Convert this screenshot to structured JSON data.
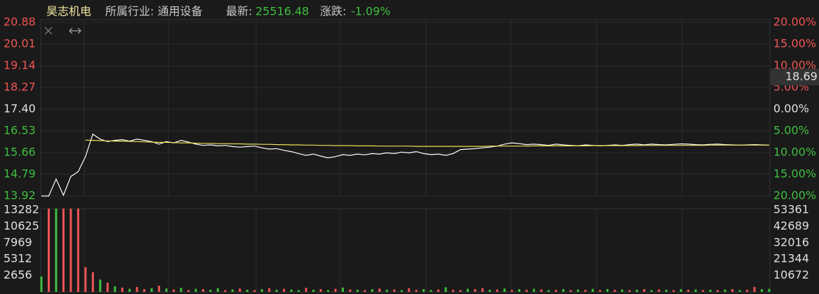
{
  "chart_data": {
    "type": "line",
    "title": "昊志机电",
    "subtitle": "所属行业: 通用设备",
    "latest": {
      "label": "最新:",
      "value": 25516.48
    },
    "change": {
      "label": "涨跌:",
      "value": -1.09,
      "value_label": "-1.09%"
    },
    "cursor_value": 18.69,
    "ylim": [
      13.92,
      20.88
    ],
    "yticks": [
      20.88,
      20.01,
      19.14,
      18.27,
      {
        "value": 17.4,
        "label": "17.40"
      },
      16.53,
      15.66,
      14.79,
      13.92
    ],
    "y2lim": [
      -20,
      20
    ],
    "y2ticks": [
      {
        "value": 20,
        "label": "20.00%"
      },
      {
        "value": 15,
        "label": "15.00%"
      },
      {
        "value": 10,
        "label": "10.00%"
      },
      {
        "value": 5,
        "label": "5.00%"
      },
      {
        "value": 0,
        "label": "0.00%"
      },
      {
        "value": -5,
        "label": "5.00%"
      },
      {
        "value": -10,
        "label": "10.00%"
      },
      {
        "value": -15,
        "label": "15.00%"
      },
      {
        "value": -20,
        "label": "20.00%"
      }
    ],
    "grid": true,
    "series": [
      {
        "color": "#ffffff",
        "values": [
          13.92,
          13.92,
          14.6,
          13.95,
          14.7,
          14.9,
          15.5,
          16.4,
          16.2,
          16.1,
          16.15,
          16.18,
          16.12,
          16.2,
          16.15,
          16.1,
          16.0,
          16.1,
          16.05,
          16.15,
          16.08,
          16.0,
          15.95,
          15.97,
          15.93,
          15.95,
          15.9,
          15.88,
          15.9,
          15.92,
          15.85,
          15.8,
          15.82,
          15.75,
          15.7,
          15.62,
          15.55,
          15.6,
          15.52,
          15.45,
          15.5,
          15.58,
          15.55,
          15.6,
          15.57,
          15.62,
          15.6,
          15.65,
          15.62,
          15.68,
          15.65,
          15.7,
          15.62,
          15.58,
          15.6,
          15.55,
          15.62,
          15.78,
          15.8,
          15.82,
          15.85,
          15.88,
          15.92,
          16.0,
          16.05,
          16.02,
          15.98,
          16.0,
          15.98,
          15.95,
          16.0,
          15.97,
          15.95,
          15.93,
          15.97,
          15.95,
          15.93,
          15.95,
          15.97,
          15.95,
          15.98,
          16.0,
          15.97,
          16.0,
          15.98,
          15.97,
          15.99,
          16.01,
          16.0,
          15.98,
          15.97,
          15.99,
          16.0,
          15.98,
          15.97,
          15.96,
          15.97,
          15.98,
          15.97,
          15.96
        ]
      },
      {
        "color": "#e8e05a",
        "values": [
          null,
          null,
          null,
          null,
          null,
          null,
          16.16,
          16.15,
          16.14,
          16.13,
          16.12,
          16.12,
          16.11,
          16.1,
          16.09,
          16.08,
          16.07,
          16.07,
          16.06,
          16.05,
          16.05,
          16.04,
          16.03,
          16.03,
          16.02,
          16.02,
          16.01,
          16.01,
          16.0,
          16.0,
          15.99,
          15.99,
          15.98,
          15.98,
          15.97,
          15.97,
          15.96,
          15.96,
          15.95,
          15.95,
          15.94,
          15.94,
          15.94,
          15.93,
          15.93,
          15.93,
          15.92,
          15.92,
          15.92,
          15.92,
          15.92,
          15.91,
          15.91,
          15.91,
          15.91,
          15.91,
          15.91,
          15.91,
          15.91,
          15.91,
          15.91,
          15.92,
          15.92,
          15.92,
          15.92,
          15.92,
          15.92,
          15.93,
          15.93,
          15.93,
          15.93,
          15.93,
          15.93,
          15.93,
          15.93,
          15.94,
          15.94,
          15.94,
          15.94,
          15.94,
          15.94,
          15.94,
          15.95,
          15.95,
          15.95,
          15.95,
          15.95,
          15.95,
          15.95,
          15.95,
          15.95,
          15.96,
          15.96,
          15.96,
          15.96,
          15.96,
          15.96,
          15.96,
          15.96,
          15.96
        ]
      }
    ],
    "volume": {
      "ylim": [
        0,
        13500
      ],
      "yticks": [
        13282,
        10625,
        7969,
        5312,
        2656
      ],
      "y2lim": [
        0,
        54237
      ],
      "y2ticks": [
        53361,
        42689,
        32016,
        21344,
        10672
      ],
      "up_color": "#f05454",
      "down_color": "#3fbf3f",
      "values": [
        2500,
        13500,
        13500,
        13500,
        13500,
        13500,
        4000,
        3200,
        2000,
        1500,
        900,
        700,
        500,
        800,
        450,
        600,
        1000,
        550,
        400,
        650,
        300,
        500,
        450,
        350,
        600,
        300,
        400,
        550,
        350,
        300,
        450,
        600,
        350,
        500,
        400,
        300,
        650,
        350,
        450,
        300,
        500,
        700,
        400,
        350,
        300,
        450,
        550,
        350,
        400,
        300,
        600,
        350,
        450,
        300,
        400,
        750,
        350,
        300,
        500,
        450,
        600,
        350,
        400,
        550,
        300,
        450,
        350,
        500,
        400,
        300,
        350,
        450,
        300,
        400,
        350,
        500,
        300,
        450,
        350,
        400,
        300,
        350,
        450,
        300,
        400,
        350,
        300,
        450,
        350,
        400,
        300,
        350,
        300,
        400,
        450,
        300,
        350,
        800,
        450,
        500
      ],
      "directions": [
        "down",
        "up",
        "down",
        "up",
        "up",
        "up",
        "up",
        "up",
        "down",
        "up",
        "down",
        "up",
        "down",
        "up",
        "up",
        "down",
        "up",
        "down",
        "up",
        "down",
        "up",
        "down",
        "up",
        "down",
        "down",
        "up",
        "down",
        "up",
        "down",
        "up",
        "down",
        "up",
        "down",
        "up",
        "down",
        "down",
        "up",
        "down",
        "up",
        "down",
        "up",
        "down",
        "up",
        "down",
        "up",
        "down",
        "up",
        "down",
        "up",
        "down",
        "up",
        "up",
        "down",
        "down",
        "up",
        "down",
        "up",
        "up",
        "down",
        "up",
        "up",
        "down",
        "up",
        "down",
        "up",
        "down",
        "up",
        "down",
        "up",
        "down",
        "up",
        "down",
        "up",
        "down",
        "up",
        "down",
        "up",
        "down",
        "up",
        "down",
        "up",
        "down",
        "up",
        "down",
        "up",
        "down",
        "up",
        "down",
        "up",
        "down",
        "up",
        "down",
        "up",
        "down",
        "up",
        "down",
        "up",
        "up",
        "down",
        "down"
      ]
    }
  }
}
